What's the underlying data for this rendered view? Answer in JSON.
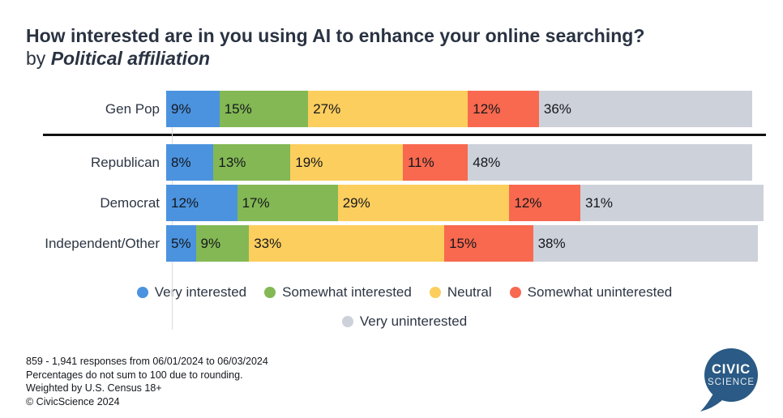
{
  "title": {
    "line1": "How interested are in you using AI to enhance your online searching?",
    "line2_prefix": "by ",
    "line2_emphasis": "Political affiliation"
  },
  "chart_data": {
    "type": "bar",
    "stacked": true,
    "orientation": "horizontal",
    "unit": "%",
    "categories": [
      "Gen Pop",
      "Republican",
      "Democrat",
      "Independent/Other"
    ],
    "series": [
      {
        "name": "Very interested",
        "color": "#4B93DF",
        "values": [
          9,
          8,
          12,
          5
        ]
      },
      {
        "name": "Somewhat interested",
        "color": "#83B854",
        "values": [
          15,
          13,
          17,
          9
        ]
      },
      {
        "name": "Neutral",
        "color": "#FCCE5E",
        "values": [
          27,
          19,
          29,
          33
        ]
      },
      {
        "name": "Somewhat uninterested",
        "color": "#F8694F",
        "values": [
          12,
          11,
          12,
          15
        ]
      },
      {
        "name": "Very uninterested",
        "color": "#CDD1DA",
        "values": [
          36,
          48,
          31,
          38
        ]
      }
    ],
    "value_label_format": "{v}%",
    "separator_after_category": "Gen Pop",
    "legend_position": "bottom",
    "legend_rows": [
      [
        0,
        1,
        2,
        3
      ],
      [
        4
      ]
    ]
  },
  "footer": {
    "line1": "859 - 1,941 responses from 06/01/2024 to 06/03/2024",
    "line2": "Percentages do not sum to 100 due to rounding.",
    "line3": "Weighted by U.S. Census 18+",
    "line4": "© CivicScience 2024"
  },
  "logo": {
    "line1": "CIVIC",
    "line2": "SCIENCE",
    "color": "#2A5A85"
  }
}
